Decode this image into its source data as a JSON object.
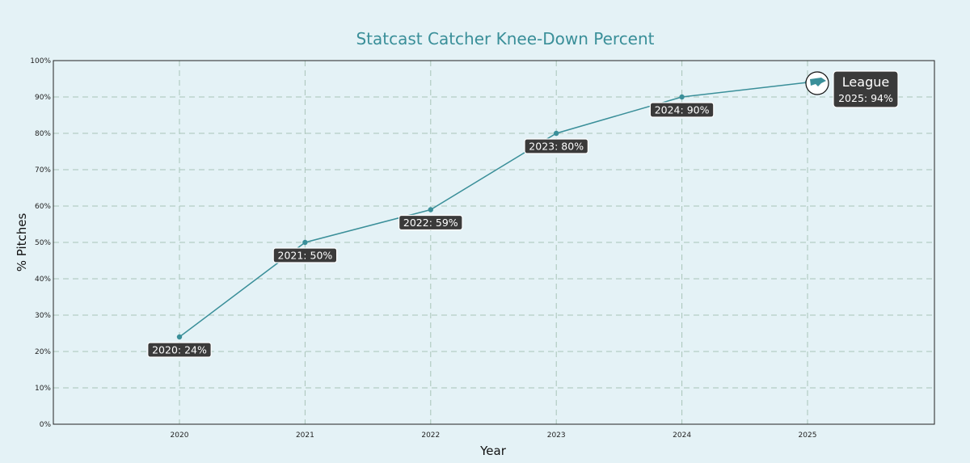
{
  "chart_data": {
    "type": "line",
    "title": "Statcast Catcher Knee-Down Percent",
    "xlabel": "Year",
    "ylabel": "% Pitches",
    "x": [
      "2020",
      "2021",
      "2022",
      "2023",
      "2024",
      "2025"
    ],
    "series": [
      {
        "name": "League",
        "values": [
          24,
          50,
          59,
          80,
          90,
          94
        ],
        "labels": [
          "2020: 24%",
          "2021: 50%",
          "2022: 59%",
          "2023: 80%",
          "2024: 90%",
          "2025: 94%"
        ]
      }
    ],
    "ylim": [
      0,
      100
    ],
    "y_ticks": [
      "0%",
      "10%",
      "20%",
      "30%",
      "40%",
      "50%",
      "60%",
      "70%",
      "80%",
      "90%",
      "100%"
    ],
    "grid": true,
    "line_color": "#3a8f99"
  }
}
